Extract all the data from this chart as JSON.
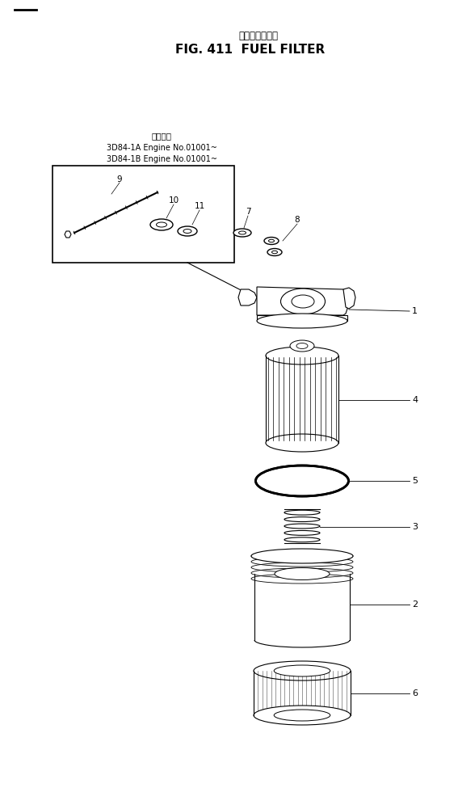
{
  "title_jp": "フェルフィルタ",
  "title_en": "FIG. 411  FUEL FILTER",
  "applicable_label": "適用号機",
  "engine_line1": "3D84-1A Engine No.01001~",
  "engine_line2": "3D84-1B Engine No.01001~",
  "bg_color": "#ffffff",
  "line_color": "#000000",
  "fig_width": 5.67,
  "fig_height": 10.01,
  "dpi": 100
}
